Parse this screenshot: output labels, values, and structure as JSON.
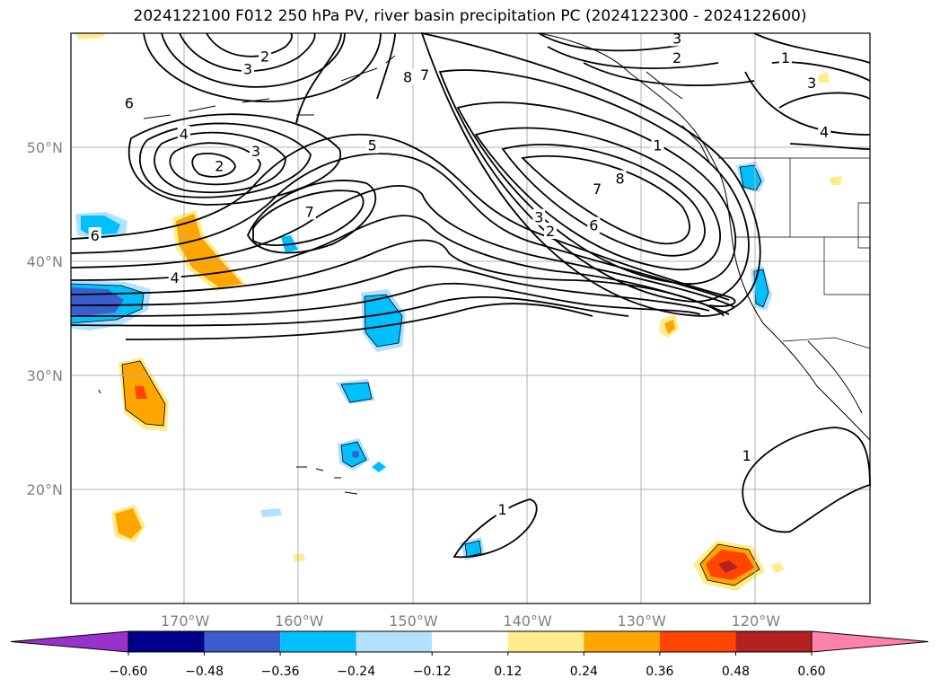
{
  "title": "2024122100 F012 250 hPa PV, river basin precipitation PC (2024122300 - 2024122600)",
  "map": {
    "lon_range": [
      180,
      110
    ],
    "lat_range": [
      10,
      60
    ],
    "lon_labels": [
      "170°W",
      "160°W",
      "150°W",
      "140°W",
      "130°W",
      "120°W"
    ],
    "lat_labels": [
      "50°N",
      "40°N",
      "30°N",
      "20°N"
    ],
    "contour_labels": [
      {
        "text": "2",
        "lon": 167,
        "lat": 48.3
      },
      {
        "text": "3",
        "lon": 163.8,
        "lat": 49.6
      },
      {
        "text": "4",
        "lon": 170.1,
        "lat": 51.1
      },
      {
        "text": "5",
        "lon": 153.6,
        "lat": 50.1
      },
      {
        "text": "6",
        "lon": 174.9,
        "lat": 53.8
      },
      {
        "text": "7",
        "lon": 159.1,
        "lat": 44.3
      },
      {
        "text": "6",
        "lon": 177.9,
        "lat": 42.2
      },
      {
        "text": "4",
        "lon": 170.9,
        "lat": 38.5
      },
      {
        "text": "2",
        "lon": 163,
        "lat": 57.9
      },
      {
        "text": "3",
        "lon": 164.5,
        "lat": 56.8
      },
      {
        "text": "8",
        "lon": 150.5,
        "lat": 56.1
      },
      {
        "text": "7",
        "lon": 149,
        "lat": 56.3
      },
      {
        "text": "8",
        "lon": 131.9,
        "lat": 47.2
      },
      {
        "text": "7",
        "lon": 133.9,
        "lat": 46.3
      },
      {
        "text": "6",
        "lon": 134.2,
        "lat": 43.1
      },
      {
        "text": "3",
        "lon": 139,
        "lat": 43.8
      },
      {
        "text": "2",
        "lon": 138,
        "lat": 42.6
      },
      {
        "text": "3",
        "lon": 126.9,
        "lat": 59.5
      },
      {
        "text": "2",
        "lon": 126.9,
        "lat": 57.8
      },
      {
        "text": "1",
        "lon": 117.4,
        "lat": 57.8
      },
      {
        "text": "3",
        "lon": 115.1,
        "lat": 55.6
      },
      {
        "text": "4",
        "lon": 114,
        "lat": 51.3
      },
      {
        "text": "1",
        "lon": 128.6,
        "lat": 50.1
      },
      {
        "text": "1",
        "lon": 120.8,
        "lat": 22.9
      },
      {
        "text": "1",
        "lon": 142.2,
        "lat": 18.2
      }
    ]
  },
  "colorbar": {
    "ticks": [
      "−0.60",
      "−0.48",
      "−0.36",
      "−0.24",
      "−0.12",
      "0.12",
      "0.24",
      "0.36",
      "0.48",
      "0.60"
    ],
    "colors": [
      "#9932cc",
      "#00008b",
      "#3a5fcd",
      "#00bfff",
      "#b0e2ff",
      "#ffffff",
      "#ffec8b",
      "#ffa500",
      "#ff4500",
      "#b22222",
      "#ff82ab"
    ]
  }
}
